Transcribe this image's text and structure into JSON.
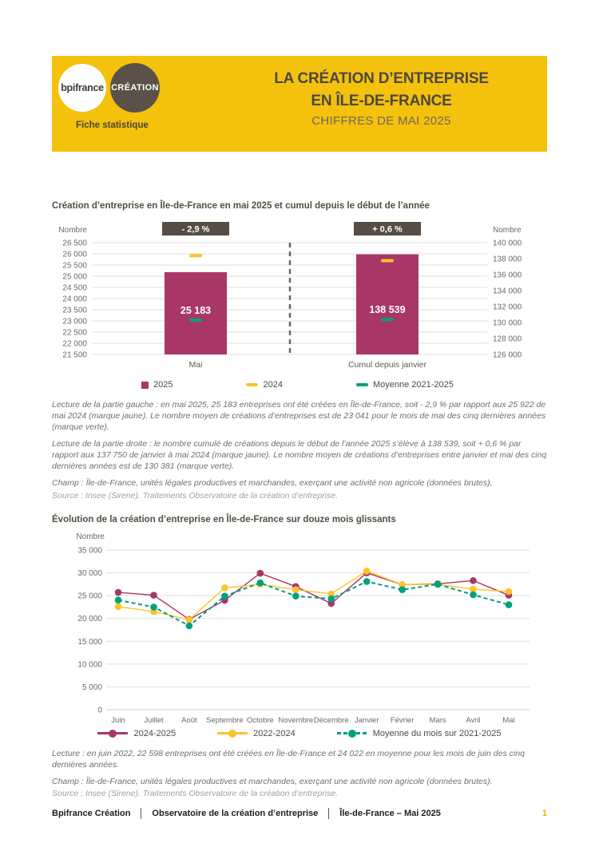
{
  "header": {
    "logo_primary": "bpifrance",
    "logo_secondary": "CRÉATION",
    "tagline": "Fiche statistique",
    "title_line1": "LA CRÉATION D’ENTREPRISE",
    "title_line2": "EN ÎLE-DE-FRANCE",
    "subtitle": "CHIFFRES DE MAI 2025"
  },
  "colors": {
    "banner_yellow": "#F4C10D",
    "badge_dark": "#564E43",
    "maroon": "#A83768",
    "yellow": "#FDC32B",
    "green": "#00A17C",
    "grid": "#E0DEDB",
    "page_number_yellow": "#F0B400"
  },
  "chart_data": [
    {
      "type": "bar",
      "title": "Création d’entreprise en Île-de-France en mai 2025 et cumul depuis le début de l’année",
      "axis_label": "Nombre",
      "panels": [
        {
          "category": "Mai",
          "badge": "- 2,9 %",
          "axis_side": "left",
          "ylim": [
            21500,
            26500
          ],
          "ytick_step": 500,
          "bar_value": 25183,
          "bar_label": "25 183",
          "marker_2024": 25922,
          "marker_moyenne": 23041
        },
        {
          "category": "Cumul depuis janvier",
          "badge": "+ 0,6 %",
          "axis_side": "right",
          "ylim": [
            126000,
            140000
          ],
          "ytick_step": 2000,
          "bar_value": 138539,
          "bar_label": "138 539",
          "marker_2024": 137750,
          "marker_moyenne": 130381
        }
      ],
      "legend": [
        {
          "label": "2025",
          "color": "maroon",
          "marker": "square"
        },
        {
          "label": "2024",
          "color": "yellow",
          "marker": "dash"
        },
        {
          "label": "Moyenne 2021-2025",
          "color": "green",
          "marker": "dash"
        }
      ]
    },
    {
      "type": "line",
      "title": "Évolution de la création d’entreprise en Île-de-France sur douze mois glissants",
      "axis_label": "Nombre",
      "ylim": [
        0,
        35000
      ],
      "ytick_step": 5000,
      "grid": true,
      "legend_position": "bottom",
      "categories": [
        "Juin",
        "Juillet",
        "Août",
        "Septembre",
        "Octobre",
        "Novembre",
        "Décembre",
        "Janvier",
        "Février",
        "Mars",
        "Avril",
        "Mai"
      ],
      "series": [
        {
          "name": "2024-2025",
          "color": "maroon",
          "style": "solid",
          "values": [
            25700,
            25100,
            19800,
            24000,
            29900,
            27000,
            23300,
            30000,
            27400,
            27600,
            28300,
            25100
          ]
        },
        {
          "name": "2022-2024",
          "color": "yellow",
          "style": "solid",
          "values": [
            22598,
            21500,
            19700,
            26700,
            27500,
            26300,
            25400,
            30400,
            27400,
            27500,
            26400,
            25900
          ]
        },
        {
          "name": "Moyenne du mois sur 2021-2025",
          "color": "green",
          "style": "dashed",
          "values": [
            24022,
            22500,
            18400,
            24900,
            27800,
            24900,
            24300,
            28100,
            26300,
            27500,
            25200,
            23000
          ]
        }
      ]
    }
  ],
  "sections": {
    "chart1_notes": [
      "Lecture de la partie gauche : en mai 2025, 25 183 entreprises ont été créées en Île-de-France, soit - 2,9 % par rapport aux 25 922 de mai 2024 (marque jaune). Le nombre moyen de créations d’entreprises est de 23 041 pour le mois de mai des cinq dernières années (marque verte).",
      "Lecture de la partie droite : le nombre cumulé de créations depuis le début de l’année 2025 s’élève à 138 539, soit + 0,6 % par rapport aux 137 750 de janvier à mai 2024 (marque jaune). Le nombre moyen de créations d’entreprises entre janvier et mai des cinq dernières années est de 130 381 (marque verte).",
      "Champ : Île-de-France, unités légales productives et marchandes, exerçant une activité non agricole (données brutes).",
      "Source : Insee (Sirene). Traitements Observatoire de la création d’entreprise."
    ],
    "chart2_notes": [
      "Lecture : en juin 2022, 22 598 entreprises ont été créées en Île-de-France et 24 022 en moyenne pour les mois de juin des cinq dernières années.",
      "Champ : Île-de-France, unités légales productives et marchandes, exerçant une activité non agricole (données brutes).",
      "Source : Insee (Sirene). Traitements Observatoire de la création d’entreprise."
    ]
  },
  "footer": {
    "items": [
      "Bpifrance Création",
      "Observatoire de la création d’entreprise",
      "Île-de-France – Mai 2025"
    ],
    "page": "1"
  }
}
